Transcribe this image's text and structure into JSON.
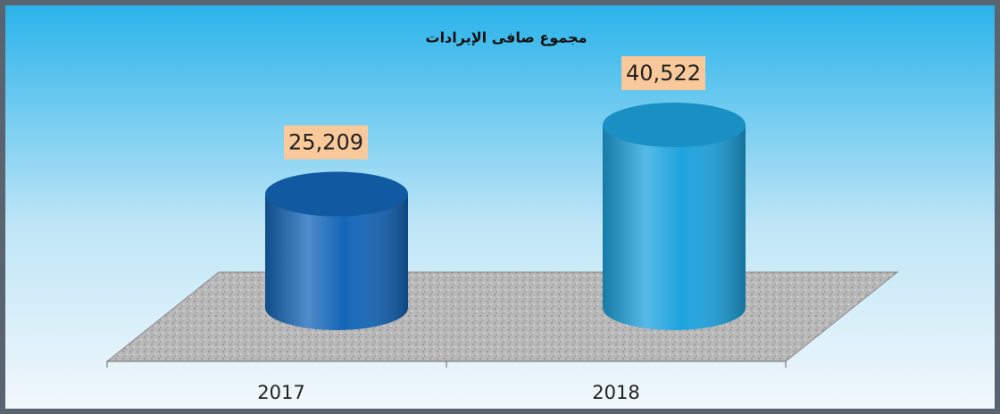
{
  "chart_data": {
    "type": "cylinder",
    "title": "مجموع صافى الإيرادات",
    "categories": [
      "2017",
      "2018"
    ],
    "values": [
      25209,
      40522
    ],
    "value_labels": [
      "25,209",
      "40,522"
    ],
    "colors": [
      "#1466b8",
      "#1ea3de"
    ]
  }
}
